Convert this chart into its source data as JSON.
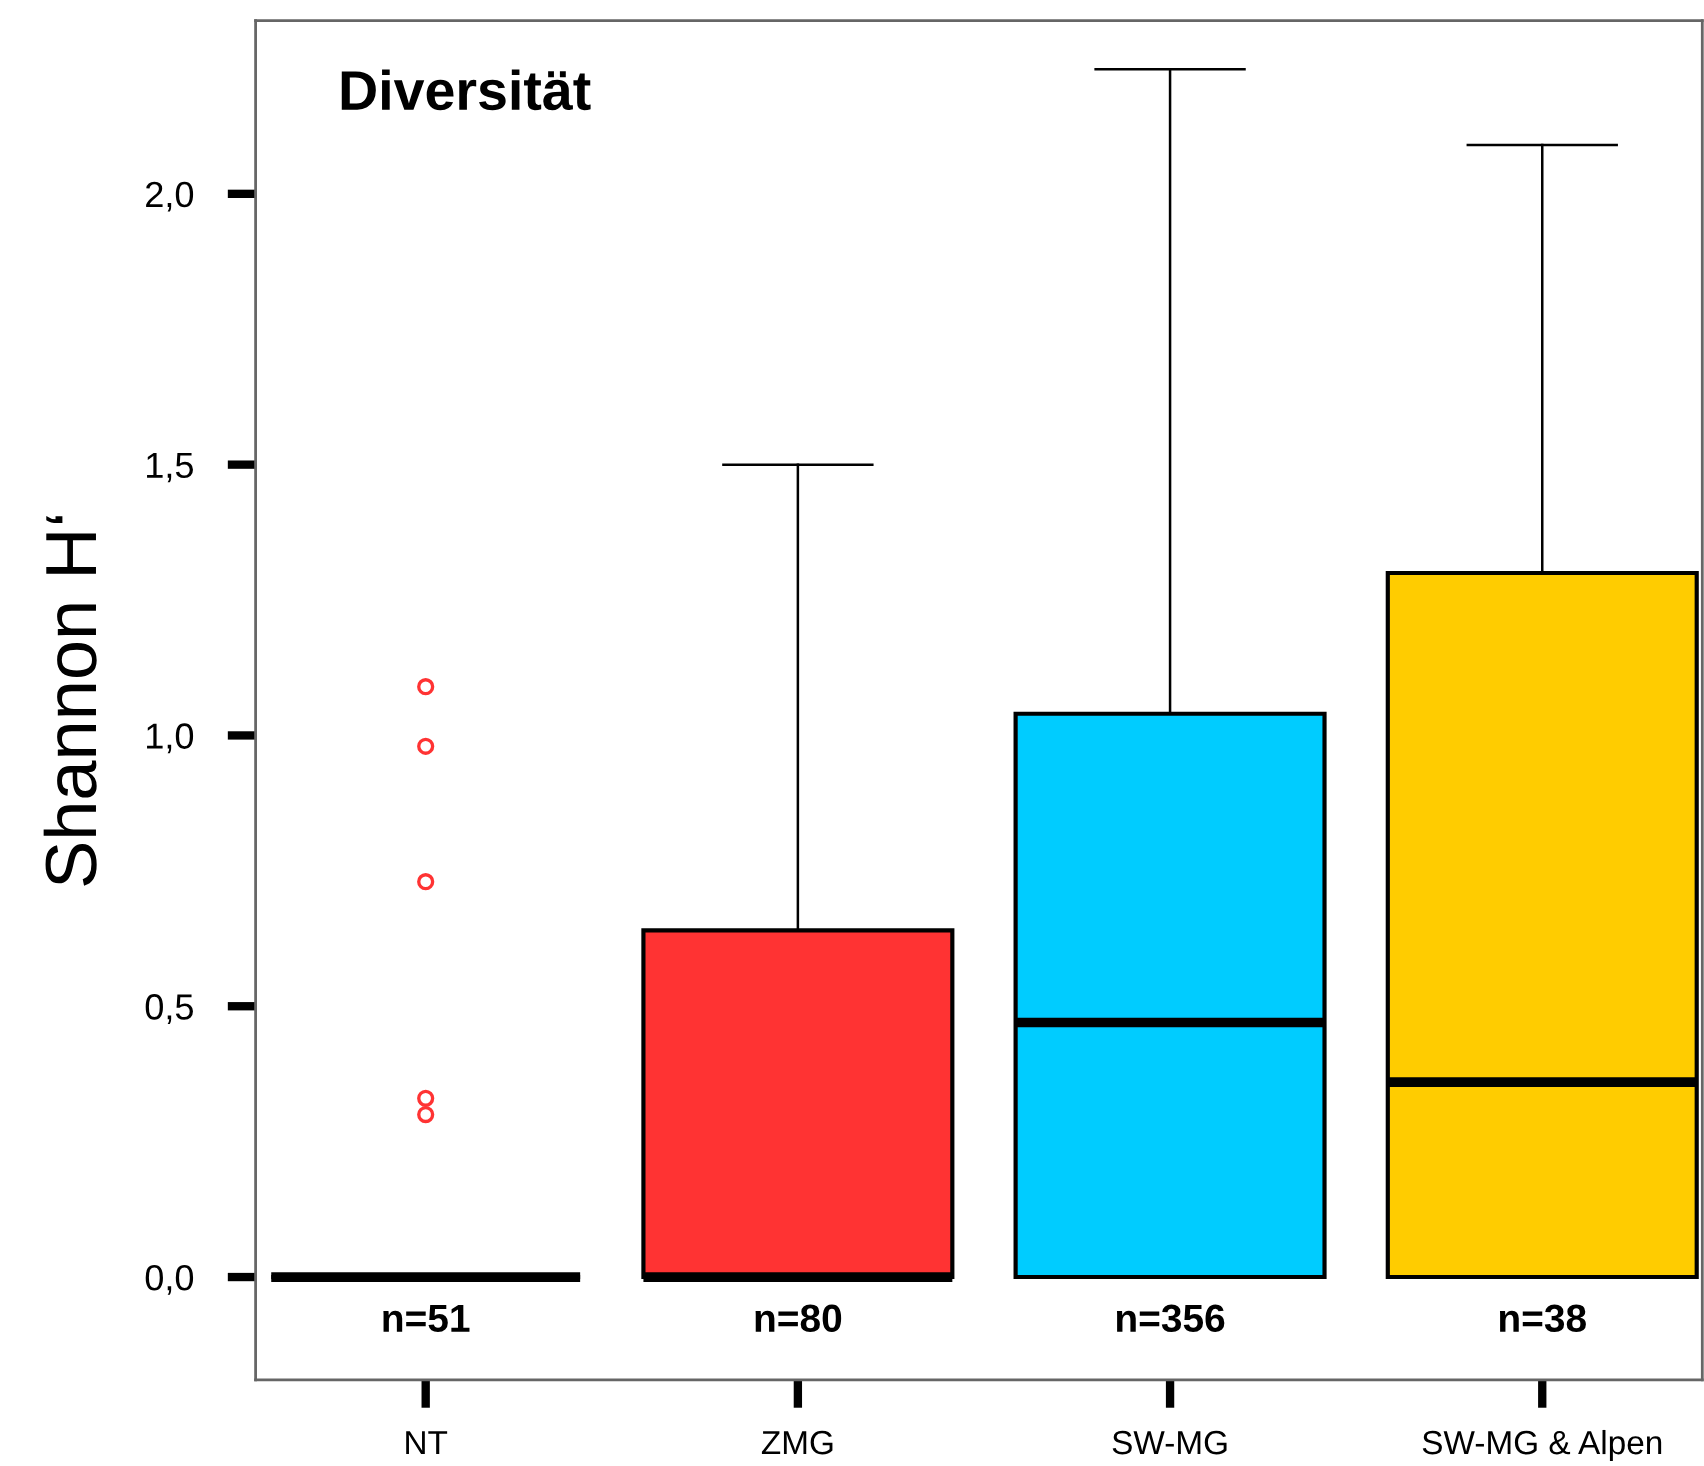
{
  "chart_data": {
    "type": "box",
    "title": "Diversität",
    "ylabel": "Shannon H‘",
    "categories": [
      "NT",
      "ZMG",
      "SW-MG",
      "SW-MG & Alpen"
    ],
    "colors": [
      null,
      "#ff3333",
      "#00ccff",
      "#ffcc00"
    ],
    "boxes": [
      {
        "low": 0,
        "q1": 0,
        "median": 0,
        "q3": 0,
        "high": 0,
        "outliers": [
          1.09,
          0.98,
          0.73,
          0.33,
          0.3
        ]
      },
      {
        "low": 0,
        "q1": 0,
        "median": 0,
        "q3": 0.64,
        "high": 1.5
      },
      {
        "low": 0,
        "q1": 0,
        "median": 0.47,
        "q3": 1.04,
        "high": 2.23
      },
      {
        "low": 0,
        "q1": 0,
        "median": 0.36,
        "q3": 1.3,
        "high": 2.09
      }
    ],
    "ylim": [
      -0.19,
      2.32
    ],
    "yticks": [
      {
        "value": 0,
        "label": "0,0"
      },
      {
        "value": 0.5,
        "label": "0,5"
      },
      {
        "value": 1.0,
        "label": "1,0"
      },
      {
        "value": 1.5,
        "label": "1,5"
      },
      {
        "value": 2.0,
        "label": "2,0"
      }
    ],
    "grid": false,
    "legend": false,
    "annotations": [
      "n=51",
      "n=80",
      "n=356",
      "n=38"
    ]
  }
}
